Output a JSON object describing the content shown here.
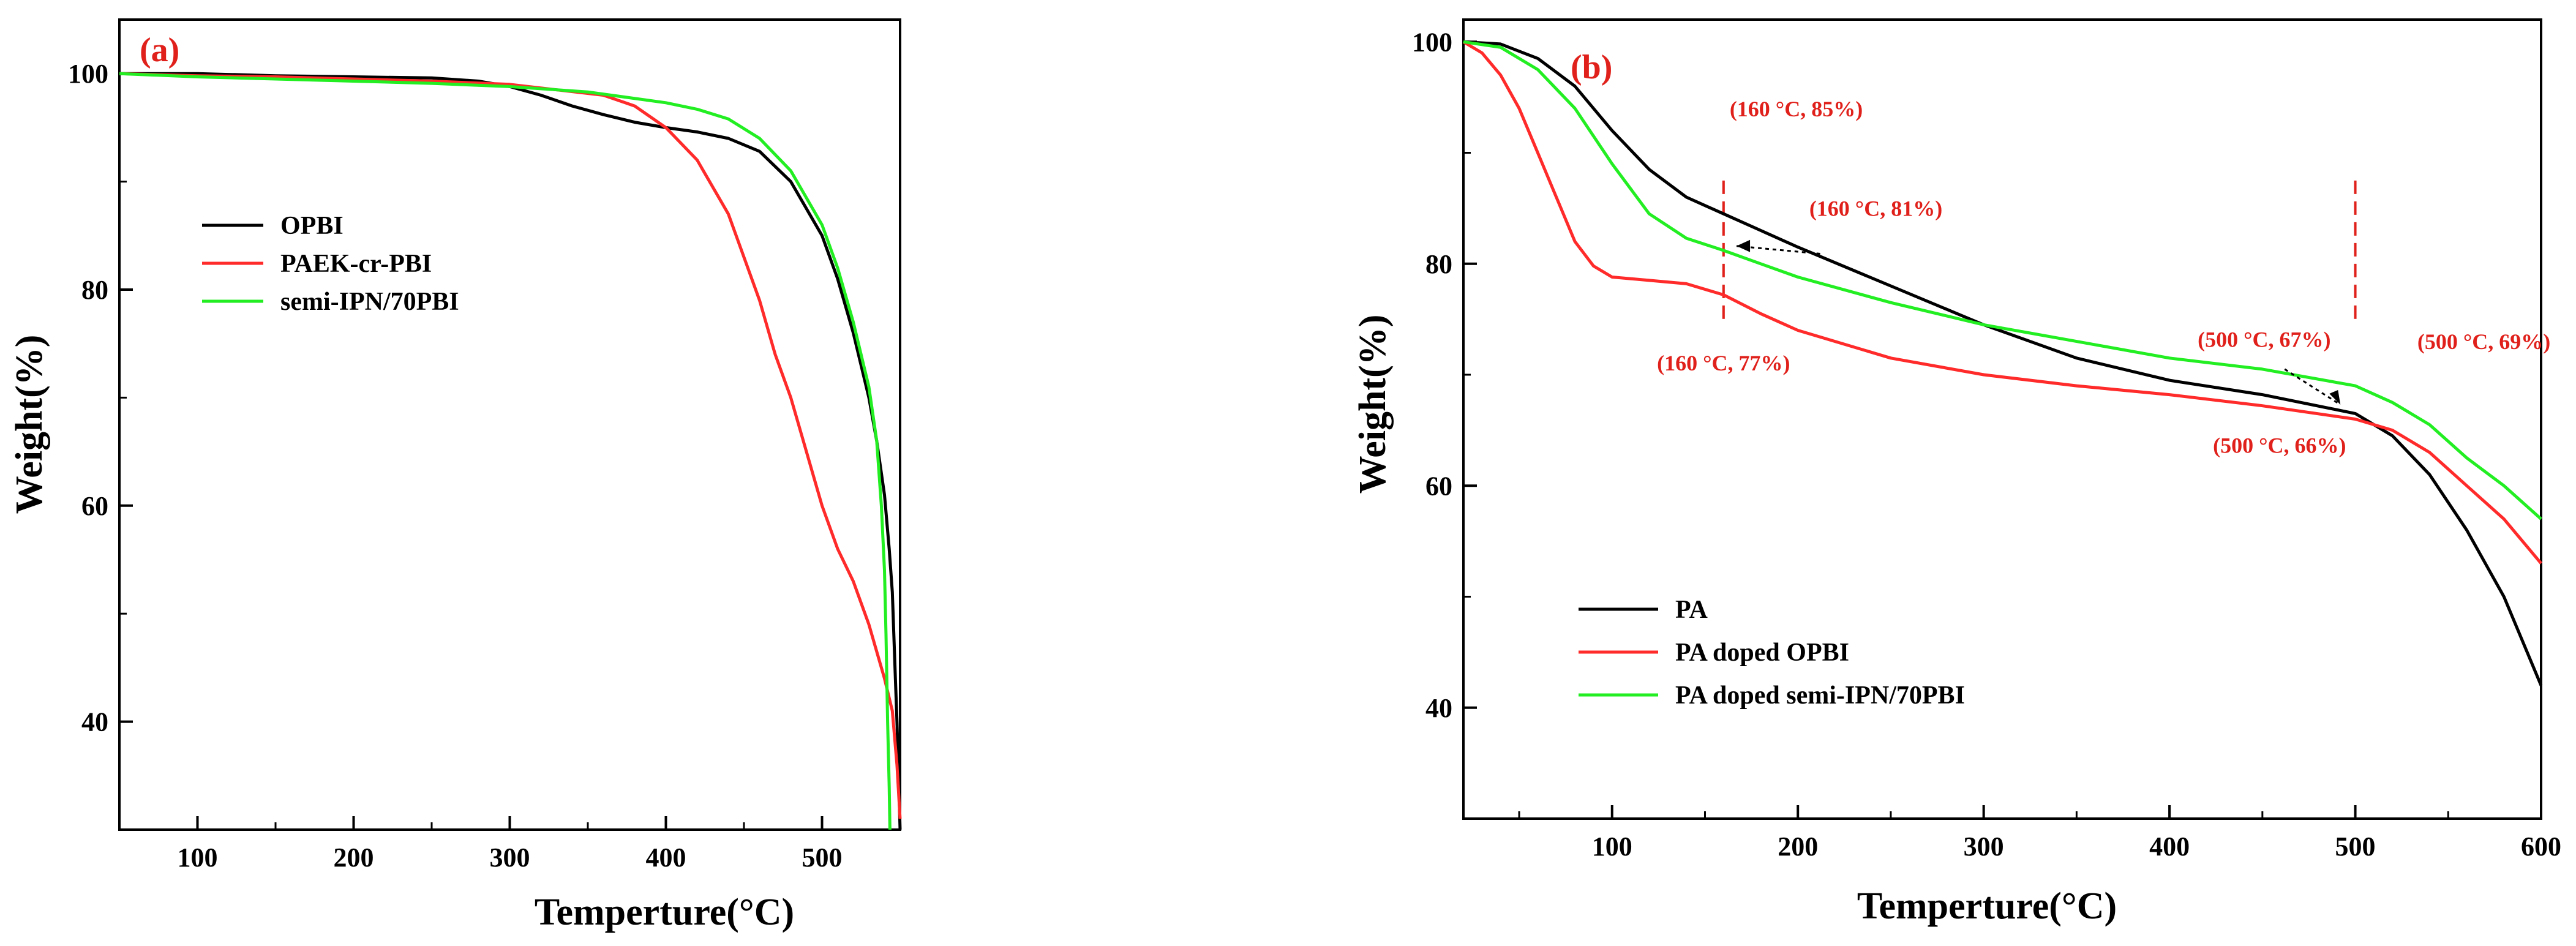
{
  "colors": {
    "black": "#000000",
    "red": "#ff2a2a",
    "green": "#22ee22",
    "label_red": "#e0201a",
    "axis": "#000000"
  },
  "chart_data": [
    {
      "type": "line",
      "panel_label": "(a)",
      "xlabel": "Temperture(°C)",
      "ylabel": "Weight(%)",
      "xlim": [
        50,
        550
      ],
      "ylim": [
        30,
        105
      ],
      "xticks": [
        100,
        200,
        300,
        400,
        500
      ],
      "yticks": [
        40,
        60,
        80,
        100
      ],
      "legend_position": "center-left",
      "series": [
        {
          "name": "OPBI",
          "color": "black",
          "x": [
            50,
            100,
            150,
            200,
            250,
            280,
            300,
            320,
            340,
            360,
            380,
            400,
            420,
            440,
            460,
            480,
            500,
            510,
            520,
            530,
            535,
            540,
            543,
            545,
            546,
            547,
            548,
            549,
            550
          ],
          "y": [
            100,
            100,
            99.8,
            99.7,
            99.6,
            99.3,
            98.8,
            98,
            97,
            96.2,
            95.5,
            95,
            94.6,
            94,
            92.8,
            90,
            85,
            81,
            76,
            70,
            66,
            61,
            56,
            52,
            48,
            44,
            40,
            35,
            30
          ]
        },
        {
          "name": "PAEK-cr-PBI",
          "color": "red",
          "x": [
            50,
            100,
            150,
            200,
            250,
            300,
            330,
            360,
            380,
            400,
            420,
            440,
            460,
            470,
            480,
            490,
            500,
            510,
            520,
            530,
            540,
            545,
            548,
            550
          ],
          "y": [
            100,
            99.8,
            99.7,
            99.5,
            99.3,
            99,
            98.5,
            98,
            97,
            95,
            92,
            87,
            79,
            74,
            70,
            65,
            60,
            56,
            53,
            49,
            44,
            41,
            36,
            31
          ]
        },
        {
          "name": "semi-IPN/70PBI",
          "color": "green",
          "x": [
            50,
            100,
            150,
            200,
            250,
            300,
            350,
            400,
            420,
            440,
            460,
            480,
            500,
            510,
            520,
            530,
            535,
            538,
            540,
            541,
            542,
            543,
            543.5
          ],
          "y": [
            100,
            99.7,
            99.5,
            99.3,
            99.1,
            98.8,
            98.3,
            97.3,
            96.7,
            95.8,
            94,
            91,
            86,
            82,
            77,
            71,
            66,
            60,
            54,
            48,
            40,
            34,
            30
          ]
        }
      ]
    },
    {
      "type": "line",
      "panel_label": "(b)",
      "xlabel": "Temperture(°C)",
      "ylabel": "Weight(%)",
      "xlim": [
        20,
        600
      ],
      "ylim": [
        30,
        102
      ],
      "xticks": [
        100,
        200,
        300,
        400,
        500,
        600
      ],
      "yticks": [
        40,
        60,
        80,
        100
      ],
      "legend_position": "bottom-left",
      "series": [
        {
          "name": "PA",
          "color": "black",
          "x": [
            20,
            40,
            60,
            80,
            100,
            120,
            140,
            160,
            180,
            200,
            250,
            300,
            350,
            400,
            450,
            500,
            520,
            540,
            560,
            580,
            600
          ],
          "y": [
            100,
            99.8,
            98.5,
            96,
            92,
            88.5,
            86,
            84.5,
            83,
            81.5,
            78,
            74.5,
            71.5,
            69.5,
            68.2,
            66.5,
            64.5,
            61,
            56,
            50,
            42
          ]
        },
        {
          "name": "PA doped OPBI",
          "color": "red",
          "x": [
            20,
            30,
            40,
            50,
            60,
            70,
            80,
            90,
            100,
            120,
            140,
            160,
            180,
            200,
            250,
            300,
            350,
            400,
            450,
            500,
            520,
            540,
            560,
            580,
            600
          ],
          "y": [
            100,
            99,
            97,
            94,
            90,
            86,
            82,
            79.8,
            78.8,
            78.5,
            78.2,
            77.2,
            75.5,
            74,
            71.5,
            70,
            69,
            68.2,
            67.2,
            66,
            65,
            63,
            60,
            57,
            53
          ]
        },
        {
          "name": "PA doped semi-IPN/70PBI",
          "color": "green",
          "x": [
            20,
            40,
            60,
            80,
            100,
            120,
            140,
            160,
            180,
            200,
            250,
            300,
            350,
            400,
            450,
            500,
            520,
            540,
            560,
            580,
            600
          ],
          "y": [
            100,
            99.5,
            97.5,
            94,
            89,
            84.5,
            82.3,
            81.2,
            80,
            78.8,
            76.5,
            74.5,
            73,
            71.5,
            70.5,
            69,
            67.5,
            65.5,
            62.5,
            60,
            57
          ]
        }
      ],
      "annotations": [
        {
          "text": "(160 °C, 85%)",
          "x": 160,
          "y": 85
        },
        {
          "text": "(160 °C, 81%)",
          "x": 160,
          "y": 81
        },
        {
          "text": "(160 °C, 77%)",
          "x": 160,
          "y": 77
        },
        {
          "text": "(500 °C, 67%)",
          "x": 500,
          "y": 67
        },
        {
          "text": "(500 °C, 69%)",
          "x": 500,
          "y": 69
        },
        {
          "text": "(500 °C, 66%)",
          "x": 500,
          "y": 66
        }
      ]
    }
  ]
}
